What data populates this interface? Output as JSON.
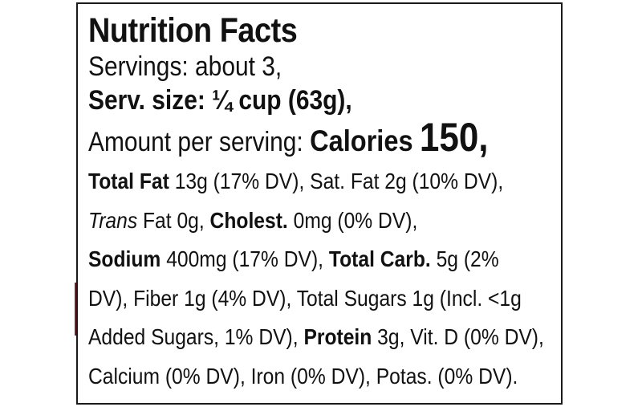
{
  "label": {
    "title": "Nutrition Facts",
    "servings": "Servings: about 3,",
    "serving_size": "Serv. size: ¼ cup (63g),",
    "amount_per_serving": "Amount per serving:",
    "calories_label": "Calories",
    "calories_value": "150,"
  },
  "nutrients": {
    "total_fat_label": "Total Fat",
    "total_fat_value": " 13g (17% DV), Sat. Fat 2g (10% DV),",
    "trans_label": "Trans",
    "trans_value": " Fat 0g, ",
    "cholest_label": "Cholest.",
    "cholest_value": " 0mg (0% DV),",
    "sodium_label": "Sodium",
    "sodium_value": " 400mg (17% DV), ",
    "carb_label": "Total Carb.",
    "carb_value": " 5g (2%",
    "line4": "DV), Fiber 1g (4% DV), Total Sugars 1g (Incl. <1g",
    "line5_pre": "Added Sugars, 1% DV), ",
    "protein_label": "Protein",
    "protein_value": " 3g, Vit. D (0% DV),",
    "line6": "Calcium (0% DV), Iron (0% DV), Potas. (0% DV)."
  },
  "colors": {
    "text": "#111111",
    "border": "#1a1a1a",
    "edge_mark": "#6a1f2a"
  }
}
